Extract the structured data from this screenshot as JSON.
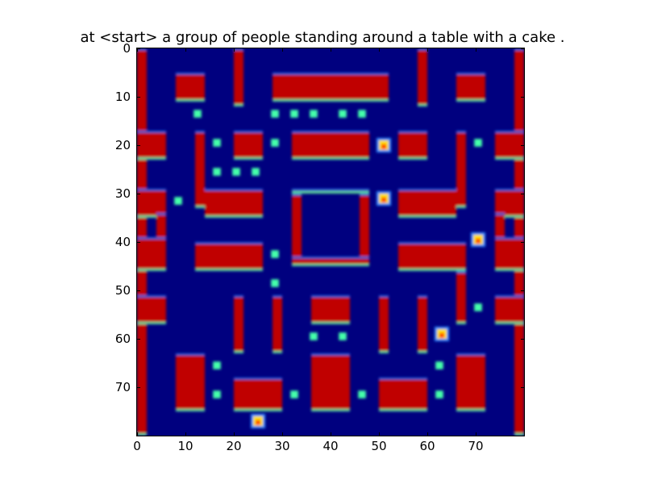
{
  "chart_data": {
    "type": "heatmap",
    "title": "at <start> a group of people standing around a table with a cake .",
    "colormap": "jet",
    "xlim": [
      0,
      80
    ],
    "ylim": [
      80,
      0
    ],
    "x_ticks": [
      "0",
      "10",
      "20",
      "30",
      "40",
      "50",
      "60",
      "70"
    ],
    "y_ticks": [
      "0",
      "10",
      "20",
      "30",
      "40",
      "50",
      "60",
      "70"
    ],
    "grid": false,
    "colors": {
      "background": "#00007f",
      "wall": "#c00000",
      "wall_edge_light": "#46ffb5",
      "wall_edge_dark": "#0070ff",
      "inner_edge_light": "#ffd400",
      "pellet": "#44ffaa",
      "character": "#ffe000"
    },
    "walls": [
      [
        0,
        0,
        2,
        80
      ],
      [
        78,
        0,
        80,
        80
      ],
      [
        8,
        5,
        14,
        11
      ],
      [
        20,
        0,
        22,
        12
      ],
      [
        28,
        5,
        52,
        11
      ],
      [
        58,
        0,
        60,
        12
      ],
      [
        66,
        5,
        72,
        11
      ],
      [
        0,
        17,
        6,
        23
      ],
      [
        12,
        17,
        14,
        33
      ],
      [
        20,
        17,
        26,
        23
      ],
      [
        32,
        17,
        48,
        23
      ],
      [
        54,
        17,
        60,
        23
      ],
      [
        66,
        17,
        68,
        33
      ],
      [
        74,
        17,
        80,
        23
      ],
      [
        0,
        29,
        6,
        35
      ],
      [
        14,
        29,
        26,
        35
      ],
      [
        32,
        29,
        48,
        30
      ],
      [
        32,
        30,
        34,
        45
      ],
      [
        46,
        30,
        48,
        45
      ],
      [
        32,
        43,
        48,
        45
      ],
      [
        54,
        29,
        66,
        35
      ],
      [
        74,
        29,
        80,
        35
      ],
      [
        4,
        34,
        6,
        40
      ],
      [
        0,
        39,
        6,
        46
      ],
      [
        12,
        40,
        26,
        46
      ],
      [
        54,
        40,
        68,
        46
      ],
      [
        74,
        34,
        76,
        40
      ],
      [
        74,
        39,
        80,
        46
      ],
      [
        0,
        51,
        6,
        57
      ],
      [
        20,
        51,
        22,
        63
      ],
      [
        28,
        51,
        30,
        63
      ],
      [
        36,
        51,
        44,
        57
      ],
      [
        50,
        51,
        52,
        63
      ],
      [
        58,
        51,
        60,
        63
      ],
      [
        66,
        46,
        68,
        57
      ],
      [
        74,
        51,
        80,
        57
      ],
      [
        8,
        63,
        14,
        75
      ],
      [
        20,
        68,
        30,
        75
      ],
      [
        36,
        63,
        44,
        75
      ],
      [
        50,
        68,
        60,
        75
      ],
      [
        66,
        63,
        72,
        75
      ]
    ],
    "pellets": [
      [
        12.5,
        13.5
      ],
      [
        28.5,
        13.5
      ],
      [
        32.5,
        13.5
      ],
      [
        36.5,
        13.5
      ],
      [
        42.5,
        13.5
      ],
      [
        46.5,
        13.5
      ],
      [
        16.5,
        19.5
      ],
      [
        28.5,
        19.5
      ],
      [
        70.5,
        19.5
      ],
      [
        16.5,
        25.5
      ],
      [
        20.5,
        25.5
      ],
      [
        24.5,
        25.5
      ],
      [
        8.5,
        31.5
      ],
      [
        28.5,
        42.5
      ],
      [
        28.5,
        48.5
      ],
      [
        70.5,
        53.5
      ],
      [
        36.5,
        59.5
      ],
      [
        42.5,
        59.5
      ],
      [
        16.5,
        65.5
      ],
      [
        62.5,
        65.5
      ],
      [
        16.5,
        71.5
      ],
      [
        32.5,
        71.5
      ],
      [
        46.5,
        71.5
      ],
      [
        62.5,
        71.5
      ]
    ],
    "characters": [
      {
        "name": "ghost-top",
        "x": 51,
        "y": 20
      },
      {
        "name": "ghost-center",
        "x": 51,
        "y": 31
      },
      {
        "name": "ghost-right",
        "x": 70.5,
        "y": 39.5
      },
      {
        "name": "ghost-bottom-right",
        "x": 63,
        "y": 59
      },
      {
        "name": "pacman-player",
        "x": 25,
        "y": 77
      }
    ]
  }
}
